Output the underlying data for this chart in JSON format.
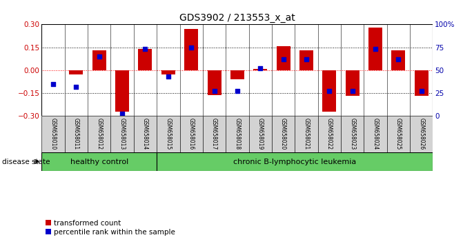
{
  "title": "GDS3902 / 213553_x_at",
  "samples": [
    "GSM658010",
    "GSM658011",
    "GSM658012",
    "GSM658013",
    "GSM658014",
    "GSM658015",
    "GSM658016",
    "GSM658017",
    "GSM658018",
    "GSM658019",
    "GSM658020",
    "GSM658021",
    "GSM658022",
    "GSM658023",
    "GSM658024",
    "GSM658025",
    "GSM658026"
  ],
  "red_values": [
    0.0,
    -0.03,
    0.13,
    -0.27,
    0.14,
    -0.03,
    0.27,
    -0.165,
    -0.06,
    0.01,
    0.155,
    0.13,
    -0.27,
    -0.17,
    0.28,
    0.13,
    -0.17
  ],
  "blue_pct": [
    35,
    32,
    65,
    2,
    73,
    43,
    75,
    27,
    27,
    52,
    62,
    62,
    27,
    27,
    73,
    62,
    27
  ],
  "group_labels": [
    "healthy control",
    "chronic B-lymphocytic leukemia"
  ],
  "healthy_count": 5,
  "bar_color": "#cc0000",
  "dot_color": "#0000cc",
  "ylim": [
    -0.3,
    0.3
  ],
  "yticks_left": [
    -0.3,
    -0.15,
    0.0,
    0.15,
    0.3
  ],
  "yticks_right": [
    0,
    25,
    50,
    75,
    100
  ],
  "hline_values": [
    -0.15,
    0.0,
    0.15
  ],
  "hline_colors": [
    "black",
    "red",
    "black"
  ],
  "hline_styles": [
    "dotted",
    "dotted",
    "dotted"
  ],
  "left_ycolor": "#cc0000",
  "right_ycolor": "#0000aa",
  "disease_state_label": "disease state",
  "legend_red": "transformed count",
  "legend_blue": "percentile rank within the sample",
  "green_color": "#66cc66"
}
